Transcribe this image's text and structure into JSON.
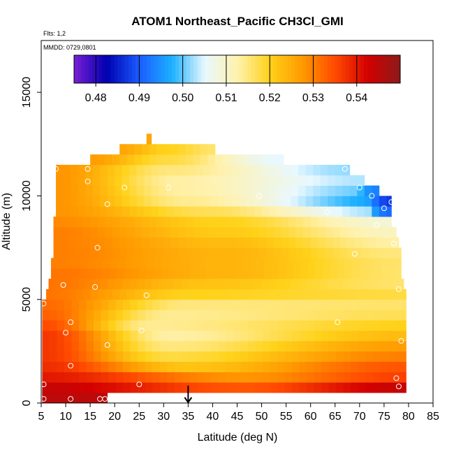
{
  "chart_data": {
    "type": "heatmap",
    "title": "ATOM1 Northeast_Pacific CH3Cl_GMI",
    "annotations": [
      "Flts: 1,2",
      "MMDD: 0729,0801"
    ],
    "xlabel": "Latitude (deg N)",
    "ylabel": "Altitude (m)",
    "xlim": [
      5,
      85
    ],
    "ylim": [
      0,
      17500
    ],
    "x_ticks": [
      5,
      10,
      15,
      20,
      25,
      30,
      35,
      40,
      45,
      50,
      55,
      60,
      65,
      70,
      75,
      80,
      85
    ],
    "y_ticks": [
      0,
      5000,
      10000,
      15000
    ],
    "colorbar": {
      "range": [
        0.475,
        0.55
      ],
      "ticks": [
        0.48,
        0.49,
        0.5,
        0.51,
        0.52,
        0.53,
        0.54
      ],
      "tick_labels": [
        "0.48",
        "0.49",
        "0.50",
        "0.51",
        "0.52",
        "0.53",
        "0.54"
      ],
      "colors": [
        "#7a1fd6",
        "#0000b0",
        "#1a5cff",
        "#1cb0ff",
        "#e8f8ff",
        "#fff2b0",
        "#ffd21a",
        "#ff9a00",
        "#ff4a00",
        "#d40000",
        "#8c1a1a"
      ]
    },
    "grid": false,
    "legend": "none",
    "profile_rows": [
      {
        "alt": 250,
        "x0": 5.2,
        "x1": 18.5,
        "left": 0.545,
        "mid": 0.545,
        "right": 0.545,
        "pos": 0.5
      },
      {
        "alt": 750,
        "x0": 5.2,
        "x1": 79.5,
        "left": 0.544,
        "mid": 0.534,
        "right": 0.544,
        "pos": 0.55
      },
      {
        "alt": 1250,
        "x0": 5.2,
        "x1": 79.5,
        "left": 0.54,
        "mid": 0.528,
        "right": 0.536,
        "pos": 0.55
      },
      {
        "alt": 1750,
        "x0": 5.2,
        "x1": 79.5,
        "left": 0.538,
        "mid": 0.522,
        "right": 0.534,
        "pos": 0.4
      },
      {
        "alt": 2250,
        "x0": 5.2,
        "x1": 79.5,
        "left": 0.537,
        "mid": 0.518,
        "right": 0.53,
        "pos": 0.35
      },
      {
        "alt": 2750,
        "x0": 5.2,
        "x1": 79.5,
        "left": 0.537,
        "mid": 0.515,
        "right": 0.527,
        "pos": 0.35
      },
      {
        "alt": 3250,
        "x0": 5.2,
        "x1": 79.5,
        "left": 0.537,
        "mid": 0.513,
        "right": 0.523,
        "pos": 0.35
      },
      {
        "alt": 3750,
        "x0": 5.2,
        "x1": 79.5,
        "left": 0.535,
        "mid": 0.514,
        "right": 0.52,
        "pos": 0.3
      },
      {
        "alt": 4250,
        "x0": 5.2,
        "x1": 79.5,
        "left": 0.533,
        "mid": 0.514,
        "right": 0.517,
        "pos": 0.35
      },
      {
        "alt": 4750,
        "x0": 5.2,
        "x1": 79.5,
        "left": 0.532,
        "mid": 0.515,
        "right": 0.516,
        "pos": 0.4
      },
      {
        "alt": 5250,
        "x0": 6.0,
        "x1": 79.5,
        "left": 0.531,
        "mid": 0.52,
        "right": 0.518,
        "pos": 0.4
      },
      {
        "alt": 5750,
        "x0": 6.5,
        "x1": 79.0,
        "left": 0.531,
        "mid": 0.522,
        "right": 0.516,
        "pos": 0.45
      },
      {
        "alt": 6250,
        "x0": 7.0,
        "x1": 78.5,
        "left": 0.531,
        "mid": 0.524,
        "right": 0.516,
        "pos": 0.5
      },
      {
        "alt": 6750,
        "x0": 7.0,
        "x1": 78.5,
        "left": 0.53,
        "mid": 0.524,
        "right": 0.516,
        "pos": 0.5
      },
      {
        "alt": 7250,
        "x0": 7.5,
        "x1": 78.5,
        "left": 0.53,
        "mid": 0.524,
        "right": 0.515,
        "pos": 0.5
      },
      {
        "alt": 7750,
        "x0": 7.5,
        "x1": 78.0,
        "left": 0.53,
        "mid": 0.523,
        "right": 0.513,
        "pos": 0.5
      },
      {
        "alt": 8250,
        "x0": 7.5,
        "x1": 77.5,
        "left": 0.53,
        "mid": 0.521,
        "right": 0.511,
        "pos": 0.5
      },
      {
        "alt": 8750,
        "x0": 7.5,
        "x1": 76.5,
        "left": 0.529,
        "mid": 0.52,
        "right": 0.509,
        "pos": 0.5
      },
      {
        "alt": 9250,
        "x0": 8.0,
        "x1": 76.5,
        "left": 0.528,
        "mid": 0.517,
        "right": 0.502,
        "pos": 0.45
      },
      {
        "alt": 9750,
        "x0": 8.0,
        "x1": 76.5,
        "left": 0.528,
        "mid": 0.514,
        "right": 0.496,
        "pos": 0.4
      },
      {
        "alt": 10250,
        "x0": 8.0,
        "x1": 74.0,
        "left": 0.528,
        "mid": 0.513,
        "right": 0.5,
        "pos": 0.4
      },
      {
        "alt": 10750,
        "x0": 8.0,
        "x1": 71.0,
        "left": 0.528,
        "mid": 0.513,
        "right": 0.503,
        "pos": 0.4
      },
      {
        "alt": 11250,
        "x0": 8.0,
        "x1": 68.0,
        "left": 0.528,
        "mid": 0.515,
        "right": 0.502,
        "pos": 0.4
      },
      {
        "alt": 11750,
        "x0": 15.0,
        "x1": 54.5,
        "left": 0.527,
        "mid": 0.518,
        "right": 0.505,
        "pos": 0.4
      },
      {
        "alt": 12250,
        "x0": 21.0,
        "x1": 40.5,
        "left": 0.526,
        "mid": 0.52,
        "right": 0.516,
        "pos": 0.5
      },
      {
        "alt": 12750,
        "x0": 26.5,
        "x1": 27.5,
        "left": 0.526,
        "mid": 0.526,
        "right": 0.526,
        "pos": 0.5
      }
    ],
    "hotspots": [
      {
        "x": 74.5,
        "y": 9600,
        "value": 0.49
      },
      {
        "x": 75.5,
        "y": 9300,
        "value": 0.492
      },
      {
        "x": 77.0,
        "y": 9700,
        "value": 0.48
      },
      {
        "x": 76.5,
        "y": 9900,
        "value": 0.488
      },
      {
        "x": 72.5,
        "y": 10400,
        "value": 0.494
      },
      {
        "x": 74.5,
        "y": 10200,
        "value": 0.493
      }
    ],
    "samples": [
      {
        "x": 8.0,
        "y": 11300
      },
      {
        "x": 14.5,
        "y": 11300
      },
      {
        "x": 14.5,
        "y": 10700
      },
      {
        "x": 22.0,
        "y": 10400
      },
      {
        "x": 31.0,
        "y": 10400
      },
      {
        "x": 18.5,
        "y": 9600
      },
      {
        "x": 49.5,
        "y": 10000
      },
      {
        "x": 63.5,
        "y": 9200
      },
      {
        "x": 67.0,
        "y": 11300
      },
      {
        "x": 70.0,
        "y": 10400
      },
      {
        "x": 72.5,
        "y": 10000
      },
      {
        "x": 73.5,
        "y": 8600
      },
      {
        "x": 75.0,
        "y": 9400
      },
      {
        "x": 76.5,
        "y": 9700
      },
      {
        "x": 16.5,
        "y": 7500
      },
      {
        "x": 69.0,
        "y": 7200
      },
      {
        "x": 77.0,
        "y": 7700
      },
      {
        "x": 9.5,
        "y": 5700
      },
      {
        "x": 16.0,
        "y": 5600
      },
      {
        "x": 26.5,
        "y": 5200
      },
      {
        "x": 78.0,
        "y": 5500
      },
      {
        "x": 5.5,
        "y": 4800
      },
      {
        "x": 11.0,
        "y": 3900
      },
      {
        "x": 10.0,
        "y": 3400
      },
      {
        "x": 25.5,
        "y": 3500
      },
      {
        "x": 65.5,
        "y": 3900
      },
      {
        "x": 78.5,
        "y": 3000
      },
      {
        "x": 18.5,
        "y": 2800
      },
      {
        "x": 11.0,
        "y": 1800
      },
      {
        "x": 77.5,
        "y": 1200
      },
      {
        "x": 78.0,
        "y": 800
      },
      {
        "x": 5.5,
        "y": 900
      },
      {
        "x": 25.0,
        "y": 900
      },
      {
        "x": 5.5,
        "y": 200
      },
      {
        "x": 11.0,
        "y": 200
      },
      {
        "x": 17.0,
        "y": 200
      },
      {
        "x": 18.0,
        "y": 200
      }
    ],
    "marker_arrow": {
      "x": 35,
      "y_from": 700,
      "y_to": 0
    }
  }
}
